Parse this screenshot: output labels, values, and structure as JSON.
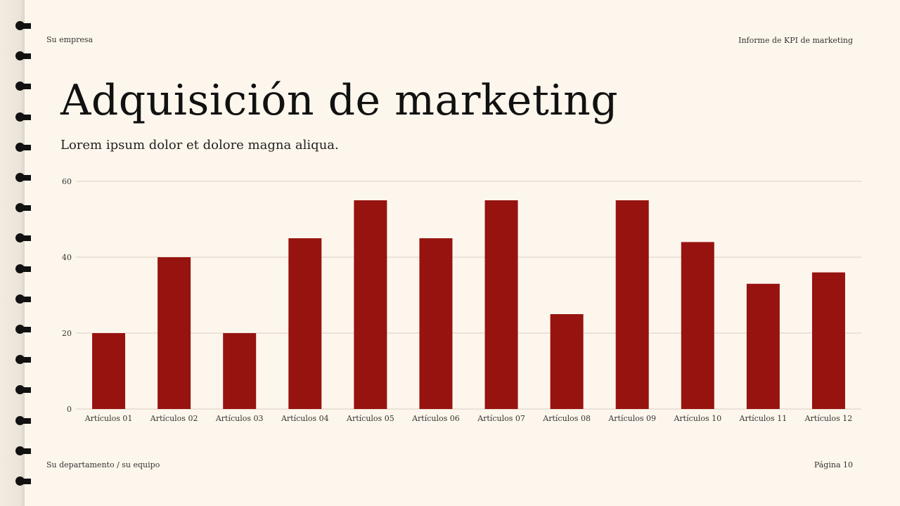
{
  "header": {
    "company": "Su empresa",
    "report": "Informe de KPI de marketing"
  },
  "title": "Adquisición de marketing",
  "subtitle": "Lorem ipsum dolor et dolore magna aliqua.",
  "footer": {
    "department": "Su departamento / su equipo",
    "page": "Página 10"
  },
  "colors": {
    "bar": "#96130f",
    "background": "#fdf6ec",
    "grid": "#d9cdc4"
  },
  "chart_data": {
    "type": "bar",
    "categories": [
      "Artículos 01",
      "Artículos 02",
      "Artículos 03",
      "Artículos 04",
      "Artículos 05",
      "Artículos 06",
      "Artículos 07",
      "Artículos 08",
      "Artículos 09",
      "Artículos 10",
      "Artículos 11",
      "Artículos 12"
    ],
    "values": [
      20,
      40,
      20,
      45,
      55,
      45,
      55,
      25,
      55,
      44,
      33,
      36
    ],
    "ylim": [
      0,
      60
    ],
    "yticks": [
      0,
      20,
      40,
      60
    ],
    "grid": true,
    "title": "",
    "xlabel": "",
    "ylabel": ""
  }
}
